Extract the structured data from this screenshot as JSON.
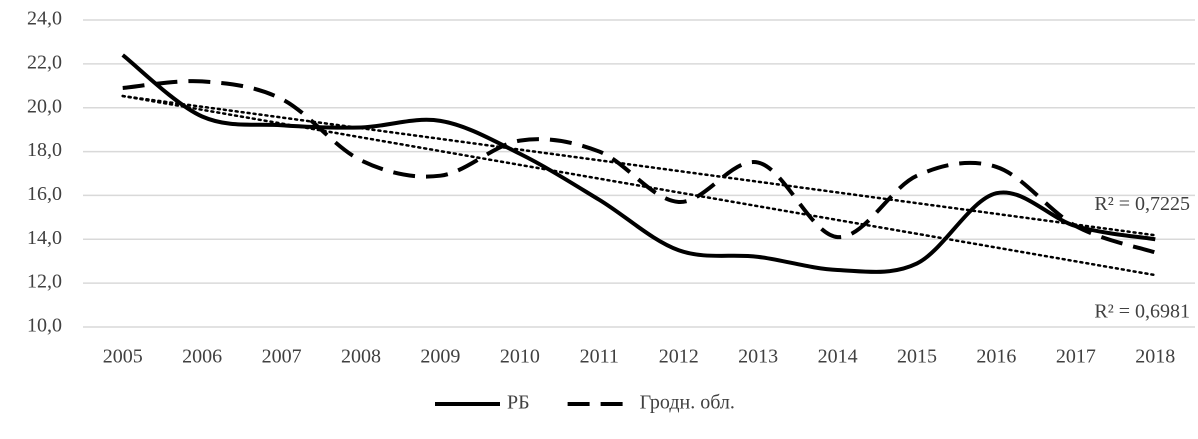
{
  "chart_data": {
    "type": "line",
    "categories": [
      "2005",
      "2006",
      "2007",
      "2008",
      "2009",
      "2010",
      "2011",
      "2012",
      "2013",
      "2014",
      "2015",
      "2016",
      "2017",
      "2018"
    ],
    "series": [
      {
        "name": "РБ",
        "color": "#000000",
        "dash": "solid",
        "values": [
          22.4,
          19.6,
          19.2,
          19.1,
          19.4,
          17.9,
          15.8,
          13.5,
          13.2,
          12.6,
          12.9,
          16.1,
          14.6,
          14.0
        ],
        "trendline_label": "R² = 0,6981"
      },
      {
        "name": "Гродн. обл.",
        "color": "#000000",
        "dash": "dashed",
        "values": [
          20.9,
          21.2,
          20.4,
          17.6,
          16.9,
          18.5,
          18.0,
          15.7,
          17.5,
          14.1,
          16.9,
          17.3,
          14.6,
          13.4
        ],
        "trendline_label": "R² = 0,7225"
      }
    ],
    "ylim": [
      10,
      24
    ],
    "yticks": [
      {
        "value": 10,
        "label": "10,0"
      },
      {
        "value": 12,
        "label": "12,0"
      },
      {
        "value": 14,
        "label": "14,0"
      },
      {
        "value": 16,
        "label": "16,0"
      },
      {
        "value": 18,
        "label": "18,0"
      },
      {
        "value": 20,
        "label": "20,0"
      },
      {
        "value": 22,
        "label": "22,0"
      },
      {
        "value": 24,
        "label": "24,0"
      }
    ],
    "grid": true,
    "legend": "bottom"
  }
}
